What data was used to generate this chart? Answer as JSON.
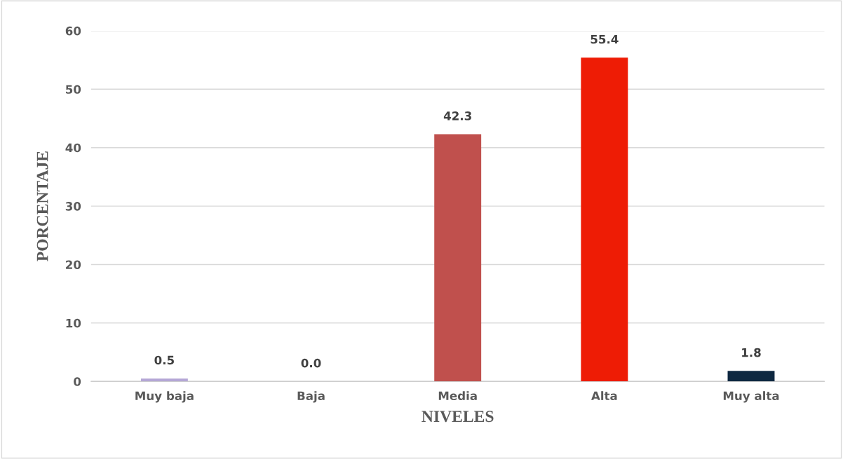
{
  "chart_data": {
    "type": "bar",
    "xlabel": "NIVELES",
    "ylabel": "PORCENTAJE",
    "categories": [
      "Muy baja",
      "Baja",
      "Media",
      "Alta",
      "Muy alta"
    ],
    "values": [
      0.5,
      0,
      42.3,
      55.4,
      1.8
    ],
    "colors": [
      "#b4a7d6",
      "#8eb4e3",
      "#c0504d",
      "#ee1c05",
      "#0e2841"
    ],
    "value_labels": [
      "0.5",
      "0.0",
      "42.3",
      "55.4",
      "1.8"
    ],
    "ylim": [
      0,
      60
    ],
    "yticks": [
      0,
      10,
      20,
      30,
      40,
      50,
      60
    ],
    "grid": "y",
    "legend": false
  }
}
